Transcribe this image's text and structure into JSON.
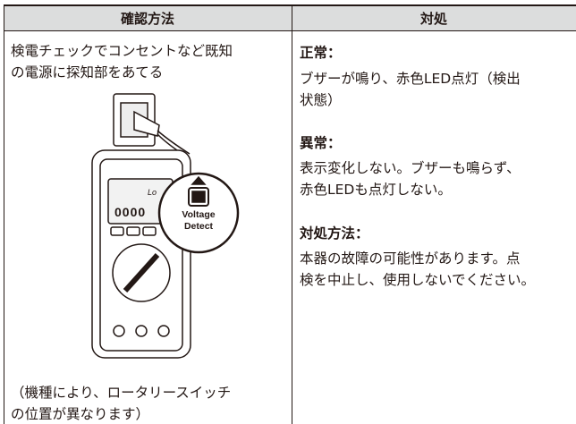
{
  "table": {
    "header": [
      "確認方法",
      "対処"
    ],
    "left": {
      "lines": [
        "検電チェックでコンセントなど既知",
        "の電源に探知部をあてる"
      ],
      "illustration": {
        "display_mode": "Lo",
        "display_digits": "0000",
        "button_label": [
          "Voltage",
          "Detect"
        ]
      },
      "note_lines": [
        "（機種により、ロータリースイッチ",
        "の位置が異なります）"
      ]
    },
    "right": [
      {
        "heading": "正常：",
        "lines": [
          "ブザーが鳴り、赤色LED点灯（検出",
          "状態）"
        ]
      },
      {
        "heading": "異常：",
        "lines": [
          "表示変化しない。ブザーも鳴らず、",
          "赤色LEDも点灯しない。"
        ]
      },
      {
        "heading": "対処方法：",
        "lines": [
          "本器の故障の可能性があります。点",
          "検を中止し、使用しないでください。"
        ]
      }
    ]
  }
}
